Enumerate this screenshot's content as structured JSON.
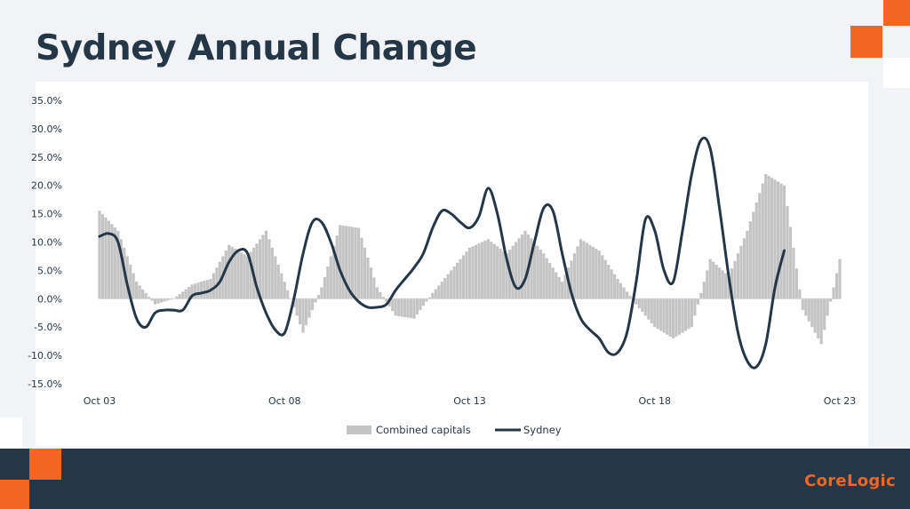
{
  "slide": {
    "title": "Sydney Annual Change",
    "brand": "CoreLogic"
  },
  "colors": {
    "background": "#f2f3f6",
    "navy": "#253746",
    "orange": "#f26522",
    "bar_fill": "#c4c4c4",
    "line": "#253746"
  },
  "icons": [
    "corner-square-decoration"
  ],
  "chart_data": {
    "type": "bar+line",
    "title": "Sydney Annual Change",
    "xlabel": "",
    "ylabel": "",
    "ylim": [
      -15,
      35
    ],
    "y_ticks": [
      "35.0%",
      "30.0%",
      "25.0%",
      "20.0%",
      "15.0%",
      "10.0%",
      "5.0%",
      "0.0%",
      "-5.0%",
      "-10.0%",
      "-15.0%"
    ],
    "x_ticks": [
      "Oct 03",
      "Oct 08",
      "Oct 13",
      "Oct 18",
      "Oct 23"
    ],
    "x_range": [
      "Oct 03",
      "Oct 23"
    ],
    "grid": false,
    "legend_position": "bottom",
    "series": [
      {
        "name": "Combined capitals",
        "kind": "bar",
        "points": [
          [
            "Oct 03",
            15.5
          ],
          [
            "Apr 04",
            12.0
          ],
          [
            "Oct 04",
            3.0
          ],
          [
            "Apr 05",
            -1.0
          ],
          [
            "Oct 05",
            0.0
          ],
          [
            "Apr 06",
            2.5
          ],
          [
            "Oct 06",
            3.5
          ],
          [
            "Apr 07",
            9.5
          ],
          [
            "Oct 07",
            7.5
          ],
          [
            "Apr 08",
            12.0
          ],
          [
            "Oct 08",
            3.0
          ],
          [
            "Apr 09",
            -6.0
          ],
          [
            "Oct 09",
            2.0
          ],
          [
            "Apr 10",
            13.0
          ],
          [
            "Oct 10",
            12.5
          ],
          [
            "Apr 11",
            2.0
          ],
          [
            "Oct 11",
            -3.0
          ],
          [
            "Apr 12",
            -3.5
          ],
          [
            "Oct 12",
            1.0
          ],
          [
            "Apr 13",
            5.0
          ],
          [
            "Oct 13",
            9.0
          ],
          [
            "Apr 14",
            10.5
          ],
          [
            "Oct 14",
            8.0
          ],
          [
            "Apr 15",
            12.0
          ],
          [
            "Oct 15",
            8.0
          ],
          [
            "Apr 16",
            3.0
          ],
          [
            "Oct 16",
            10.5
          ],
          [
            "Apr 17",
            8.5
          ],
          [
            "Oct 17",
            3.5
          ],
          [
            "Apr 18",
            -1.0
          ],
          [
            "Oct 18",
            -5.0
          ],
          [
            "Apr 19",
            -7.0
          ],
          [
            "Oct 19",
            -5.0
          ],
          [
            "Apr 20",
            7.0
          ],
          [
            "Oct 20",
            4.0
          ],
          [
            "Apr 21",
            12.0
          ],
          [
            "Oct 21",
            22.0
          ],
          [
            "Apr 22",
            20.0
          ],
          [
            "Oct 22",
            -2.0
          ],
          [
            "Apr 23",
            -8.0
          ],
          [
            "Oct 23",
            7.0
          ]
        ]
      },
      {
        "name": "Sydney",
        "kind": "line",
        "points": [
          [
            "Oct 03",
            11.0
          ],
          [
            "Jan 04",
            11.5
          ],
          [
            "Apr 04",
            10.0
          ],
          [
            "Jul 04",
            2.5
          ],
          [
            "Oct 04",
            -3.5
          ],
          [
            "Jan 05",
            -5.0
          ],
          [
            "Apr 05",
            -2.5
          ],
          [
            "Jul 05",
            -2.0
          ],
          [
            "Oct 05",
            -2.0
          ],
          [
            "Jan 06",
            -2.0
          ],
          [
            "Apr 06",
            0.5
          ],
          [
            "Jul 06",
            1.0
          ],
          [
            "Oct 06",
            1.5
          ],
          [
            "Jan 07",
            3.0
          ],
          [
            "Apr 07",
            6.5
          ],
          [
            "Jul 07",
            8.5
          ],
          [
            "Oct 07",
            8.0
          ],
          [
            "Jan 08",
            2.0
          ],
          [
            "Apr 08",
            -2.5
          ],
          [
            "Jul 08",
            -5.5
          ],
          [
            "Oct 08",
            -6.0
          ],
          [
            "Jan 09",
            0.0
          ],
          [
            "Apr 09",
            8.0
          ],
          [
            "Jul 09",
            13.5
          ],
          [
            "Oct 09",
            13.5
          ],
          [
            "Jan 10",
            10.0
          ],
          [
            "Apr 10",
            5.0
          ],
          [
            "Jul 10",
            1.5
          ],
          [
            "Oct 10",
            -0.5
          ],
          [
            "Jan 11",
            -1.5
          ],
          [
            "Apr 11",
            -1.5
          ],
          [
            "Jul 11",
            -1.0
          ],
          [
            "Oct 11",
            1.5
          ],
          [
            "Jan 12",
            3.5
          ],
          [
            "Apr 12",
            5.5
          ],
          [
            "Jul 12",
            8.0
          ],
          [
            "Oct 12",
            12.5
          ],
          [
            "Jan 13",
            15.5
          ],
          [
            "Apr 13",
            15.0
          ],
          [
            "Jul 13",
            13.5
          ],
          [
            "Oct 13",
            12.5
          ],
          [
            "Jan 14",
            14.5
          ],
          [
            "Apr 14",
            19.5
          ],
          [
            "Jul 14",
            15.0
          ],
          [
            "Oct 14",
            7.0
          ],
          [
            "Jan 15",
            2.0
          ],
          [
            "Apr 15",
            3.5
          ],
          [
            "Jul 15",
            10.0
          ],
          [
            "Oct 15",
            16.0
          ],
          [
            "Jan 16",
            15.5
          ],
          [
            "Apr 16",
            8.0
          ],
          [
            "Jul 16",
            1.0
          ],
          [
            "Oct 16",
            -3.5
          ],
          [
            "Jan 17",
            -5.5
          ],
          [
            "Apr 17",
            -7.0
          ],
          [
            "Jul 17",
            -9.5
          ],
          [
            "Oct 17",
            -9.5
          ],
          [
            "Jan 18",
            -6.0
          ],
          [
            "Apr 18",
            3.0
          ],
          [
            "Jul 18",
            14.0
          ],
          [
            "Oct 18",
            12.0
          ],
          [
            "Jan 19",
            5.0
          ],
          [
            "Apr 19",
            3.0
          ],
          [
            "Jul 19",
            12.0
          ],
          [
            "Oct 19",
            22.0
          ],
          [
            "Jan 20",
            28.0
          ],
          [
            "Apr 20",
            26.5
          ],
          [
            "Jul 20",
            16.0
          ],
          [
            "Oct 20",
            4.0
          ],
          [
            "Jan 21",
            -6.0
          ],
          [
            "Apr 21",
            -11.0
          ],
          [
            "Jul 21",
            -12.0
          ],
          [
            "Oct 21",
            -8.0
          ],
          [
            "Jan 22",
            2.0
          ],
          [
            "Apr 22",
            8.5
          ]
        ]
      }
    ]
  }
}
